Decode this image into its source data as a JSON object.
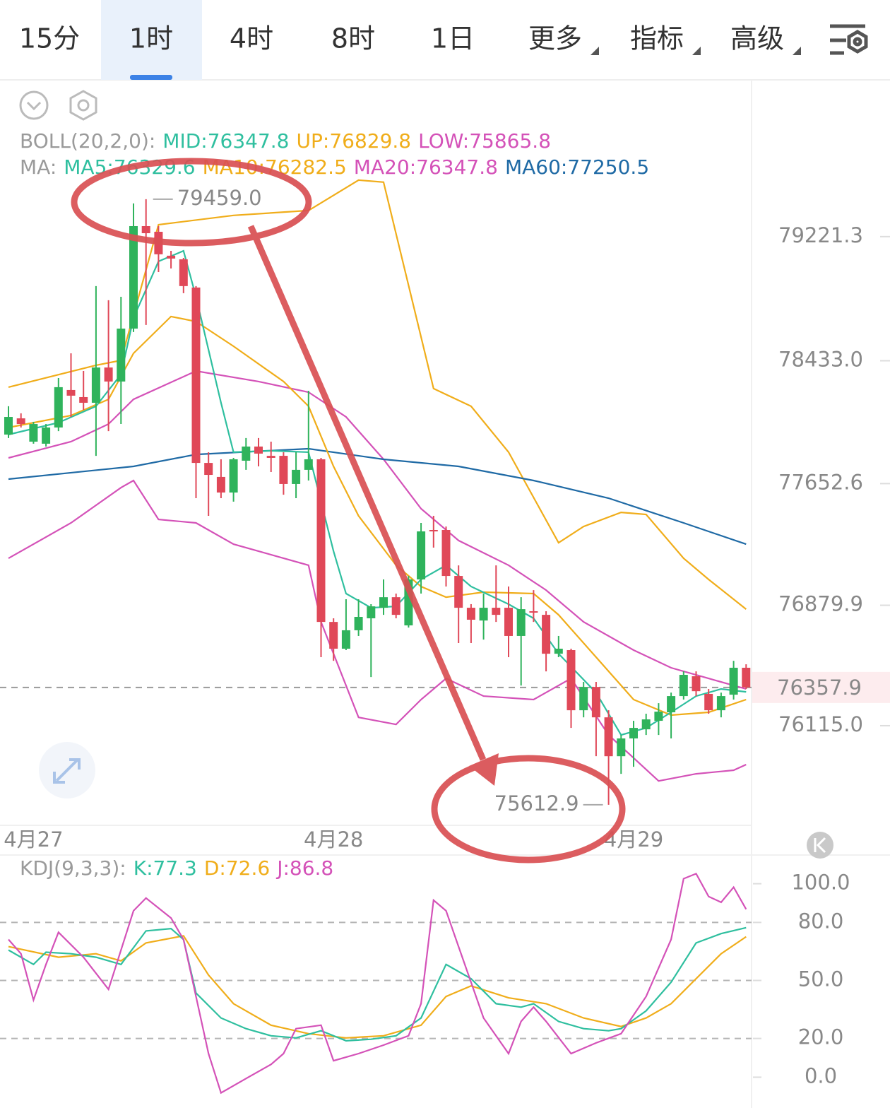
{
  "tabs": [
    {
      "label": "15分"
    },
    {
      "label": "1时"
    },
    {
      "label": "4时"
    },
    {
      "label": "8时"
    },
    {
      "label": "1日"
    },
    {
      "label": "更多",
      "menu": true
    },
    {
      "label": "指标",
      "menu": true
    },
    {
      "label": "高级",
      "menu": true
    }
  ],
  "active_tab": 1,
  "chart_data": [
    {
      "type": "candlestick",
      "legend_rows": [
        [
          {
            "text": "BOLL(20,2,0):",
            "color": "#9a9a9a"
          },
          {
            "text": "MID:76347.8",
            "color": "#2fbf9f"
          },
          {
            "text": "UP:76829.8",
            "color": "#f0ad1a"
          },
          {
            "text": "LOW:75865.8",
            "color": "#d452b8"
          }
        ],
        [
          {
            "text": "MA:",
            "color": "#9a9a9a"
          },
          {
            "text": "MA5:76329.6",
            "color": "#2fbf9f"
          },
          {
            "text": "MA10:76282.5",
            "color": "#f0ad1a"
          },
          {
            "text": "MA20:76347.8",
            "color": "#d452b8"
          },
          {
            "text": "MA60:77250.5",
            "color": "#1f6aa5"
          }
        ]
      ],
      "categories": [
        null,
        null,
        "4月27",
        null,
        null,
        null,
        null,
        null,
        null,
        null,
        null,
        null,
        null,
        null,
        null,
        null,
        null,
        null,
        null,
        null,
        null,
        null,
        null,
        null,
        null,
        null,
        "4月28",
        null,
        null,
        null,
        null,
        null,
        null,
        null,
        null,
        null,
        null,
        null,
        null,
        null,
        null,
        null,
        null,
        null,
        null,
        null,
        null,
        null,
        null,
        null,
        "4月29",
        null,
        null,
        null,
        null,
        null,
        null,
        null,
        null,
        null
      ],
      "open": [
        77964,
        78067,
        77919,
        77906,
        78009,
        78247,
        78202,
        78166,
        78390,
        78301,
        78637,
        79288,
        79252,
        79100,
        79077,
        78898,
        77784,
        77695,
        77596,
        77798,
        77888,
        77829,
        77829,
        77650,
        77740,
        77807,
        76774,
        76604,
        76721,
        76797,
        76864,
        76931,
        76752,
        77044,
        77358,
        77358,
        77066,
        76864,
        76783,
        76864,
        76864,
        76685,
        76842,
        76819,
        76572,
        76595,
        76213,
        76361,
        76168,
        75921,
        76034,
        76092,
        76146,
        76200,
        76303,
        76429,
        76317,
        76213,
        76312,
        76483
      ],
      "high": [
        78144,
        78099,
        78045,
        78031,
        78323,
        78480,
        78368,
        78907,
        78817,
        78839,
        79432,
        79459,
        79288,
        79131,
        79086,
        78907,
        77852,
        77807,
        77816,
        77942,
        77942,
        77919,
        77852,
        77852,
        78242,
        77816,
        76797,
        76918,
        76918,
        76887,
        77044,
        76954,
        77066,
        77403,
        77448,
        77380,
        77133,
        76887,
        76954,
        77133,
        76999,
        76931,
        76976,
        76842,
        76685,
        76604,
        76393,
        76393,
        76213,
        76056,
        76146,
        76191,
        76258,
        76325,
        76460,
        76460,
        76348,
        76325,
        76527,
        76505
      ],
      "low": [
        77942,
        78009,
        77906,
        77888,
        77986,
        78076,
        78121,
        77829,
        77986,
        78031,
        78615,
        78660,
        78996,
        79019,
        78862,
        77560,
        77448,
        77560,
        77538,
        77740,
        77762,
        77726,
        77582,
        77560,
        77672,
        76550,
        76527,
        76595,
        76685,
        76424,
        76819,
        76797,
        76738,
        76954,
        77246,
        76999,
        76640,
        76640,
        76662,
        76774,
        76550,
        76370,
        76774,
        76460,
        76550,
        76101,
        76168,
        75921,
        75612.9,
        75809,
        75854,
        76056,
        76056,
        76034,
        76281,
        76303,
        76191,
        76168,
        76281,
        76348
      ],
      "close": [
        78076,
        78031,
        78031,
        78009,
        78265,
        78211,
        78166,
        78390,
        78301,
        78637,
        79288,
        79243,
        79109,
        79082,
        78907,
        77784,
        77708,
        77596,
        77807,
        77888,
        77843,
        77816,
        77650,
        77740,
        77807,
        76774,
        76604,
        76721,
        76806,
        76873,
        76931,
        76819,
        77044,
        77349,
        77349,
        77066,
        76864,
        76788,
        76864,
        76819,
        76685,
        76855,
        76833,
        76572,
        76604,
        76213,
        76361,
        76168,
        75921,
        76034,
        76101,
        76155,
        76204,
        76303,
        76438,
        76334,
        76213,
        76303,
        76483,
        76357.9
      ],
      "up_color": "#2fb35c",
      "down_color": "#e04858",
      "overlays": [
        {
          "color": "#f0ad1a",
          "x": [
            0,
            7,
            9,
            12,
            18,
            24,
            28,
            30,
            34,
            37,
            40,
            44,
            46,
            49,
            51,
            54,
            56,
            59
          ],
          "values": [
            78265,
            78404,
            78435,
            79297,
            79356,
            79387,
            79580,
            79567,
            78256,
            78144,
            77852,
            77277,
            77380,
            77470,
            77457,
            77178,
            77044,
            76855
          ]
        },
        {
          "color": "#d452b8",
          "x": [
            0,
            5,
            8,
            10,
            15,
            20,
            24,
            27,
            30,
            33,
            36,
            40,
            43,
            46,
            50,
            53,
            56,
            59
          ],
          "values": [
            77816,
            77919,
            78031,
            78188,
            78368,
            78301,
            78233,
            78076,
            77807,
            77493,
            77291,
            77134,
            76976,
            76774,
            76595,
            76483,
            76415,
            76348
          ]
        },
        {
          "color": "#d452b8",
          "x": [
            0,
            5,
            9,
            10,
            12,
            15,
            18,
            24,
            25,
            28,
            31,
            33,
            35,
            38,
            42,
            45,
            48,
            52,
            55,
            58,
            59
          ],
          "values": [
            77178,
            77403,
            77627,
            77672,
            77425,
            77403,
            77268,
            77134,
            76774,
            76168,
            76123,
            76281,
            76415,
            76303,
            76281,
            76415,
            76056,
            75764,
            75809,
            75832,
            75868
          ]
        },
        {
          "color": "#1f6aa5",
          "x": [
            0,
            10,
            15,
            24,
            30,
            36,
            42,
            48,
            54,
            59
          ],
          "values": [
            77681,
            77762,
            77838,
            77874,
            77807,
            77762,
            77672,
            77560,
            77403,
            77268
          ]
        },
        {
          "color": "#f0ad1a",
          "x": [
            0,
            5,
            8,
            10,
            13,
            15,
            18,
            22,
            24,
            26,
            28,
            31,
            33,
            35,
            38,
            42,
            44,
            47,
            50,
            53,
            56,
            59
          ],
          "values": [
            78009,
            78085,
            78188,
            78480,
            78714,
            78682,
            78525,
            78301,
            78144,
            77762,
            77448,
            77134,
            76999,
            76931,
            76963,
            76954,
            76819,
            76550,
            76281,
            76182,
            76200,
            76281
          ]
        },
        {
          "color": "#2fbf9f",
          "x": [
            0,
            4,
            7,
            9,
            10,
            12,
            14,
            15,
            17,
            18,
            21,
            24,
            26,
            27,
            29,
            31,
            33,
            35,
            37,
            40,
            42,
            44,
            47,
            49,
            51,
            53,
            55,
            57,
            59
          ],
          "values": [
            77964,
            78040,
            78144,
            78346,
            78705,
            79064,
            79131,
            78839,
            78166,
            77852,
            77861,
            77852,
            77223,
            76954,
            76864,
            76873,
            77044,
            77134,
            76999,
            76887,
            76797,
            76572,
            76325,
            76056,
            76101,
            76200,
            76303,
            76348,
            76330
          ]
        }
      ],
      "ylim": [
        75482,
        80208
      ],
      "yticks": [
        79221.3,
        {
          "value": 78433.0,
          "label": "78433.0"
        },
        77652.6,
        76879.9,
        {
          "value": 76115.0,
          "label": "76115.0"
        }
      ],
      "last_price": 76357.9,
      "high_label": "79459.0",
      "low_label": "75612.9"
    },
    {
      "type": "line",
      "legend_rows": [
        [
          {
            "text": "KDJ(9,3,3):",
            "color": "#9a9a9a"
          },
          {
            "text": "K:77.3",
            "color": "#2fbf9f"
          },
          {
            "text": "D:72.6",
            "color": "#f0ad1a"
          },
          {
            "text": "J:86.8",
            "color": "#d452b8"
          }
        ]
      ],
      "series": [
        {
          "color": "#f0ad1a",
          "x": [
            0,
            4,
            7,
            9,
            11,
            14,
            16,
            18,
            21,
            24,
            27,
            30,
            33,
            35,
            37,
            40,
            43,
            46,
            49,
            51,
            53,
            55,
            57,
            59
          ],
          "values": [
            67.5,
            62.0,
            63.8,
            60.1,
            69.4,
            73.1,
            52.8,
            38.0,
            26.9,
            22.5,
            20.3,
            21.4,
            26.9,
            41.7,
            47.2,
            41.0,
            38.0,
            30.6,
            26.2,
            30.6,
            38.0,
            50.9,
            63.8,
            72.6
          ]
        },
        {
          "color": "#2fbf9f",
          "x": [
            0,
            2,
            3,
            5,
            7,
            9,
            11,
            13,
            14,
            15,
            17,
            19,
            21,
            23,
            25,
            27,
            29,
            31,
            33,
            35,
            37,
            39,
            41,
            42,
            44,
            46,
            48,
            49,
            51,
            53,
            55,
            57,
            59
          ],
          "values": [
            65.7,
            58.3,
            64.6,
            63.8,
            62.0,
            58.3,
            75.6,
            76.8,
            71.2,
            43.5,
            30.6,
            25.1,
            21.4,
            20.3,
            24.0,
            18.8,
            19.6,
            21.4,
            30.6,
            58.3,
            50.9,
            38.0,
            36.2,
            38.0,
            28.8,
            25.1,
            24.0,
            25.1,
            34.3,
            49.1,
            69.4,
            74.2,
            77.3
          ]
        },
        {
          "color": "#d452b8",
          "x": [
            0,
            1,
            2,
            3,
            4,
            6,
            8,
            10,
            11,
            13,
            14,
            16,
            17,
            19,
            21,
            22,
            23,
            25,
            26,
            28,
            30,
            32,
            33,
            34,
            35,
            36,
            38,
            40,
            41,
            42,
            43,
            45,
            47,
            49,
            51,
            53,
            54,
            55,
            56,
            57,
            58,
            59
          ],
          "values": [
            71.2,
            63.8,
            39.9,
            58.3,
            74.9,
            62.0,
            45.4,
            86.0,
            92.6,
            82.3,
            71.2,
            12.2,
            -8.1,
            -0.7,
            6.6,
            12.2,
            25.1,
            26.9,
            8.5,
            12.2,
            16.6,
            21.4,
            38.0,
            91.5,
            86.0,
            67.5,
            30.6,
            12.2,
            28.8,
            36.2,
            28.8,
            12.2,
            17.7,
            22.5,
            41.7,
            71.2,
            102.6,
            105.2,
            93.4,
            90.4,
            98.2,
            86.8
          ]
        }
      ],
      "ylim": [
        -13,
        113
      ],
      "yticks": [
        {
          "value": 100,
          "label": "100.0"
        },
        {
          "value": 80,
          "label": "80.0"
        },
        {
          "value": 50,
          "label": "50.0"
        },
        {
          "value": 20,
          "label": "20.0"
        },
        {
          "value": 0,
          "label": "0.0"
        }
      ]
    }
  ]
}
